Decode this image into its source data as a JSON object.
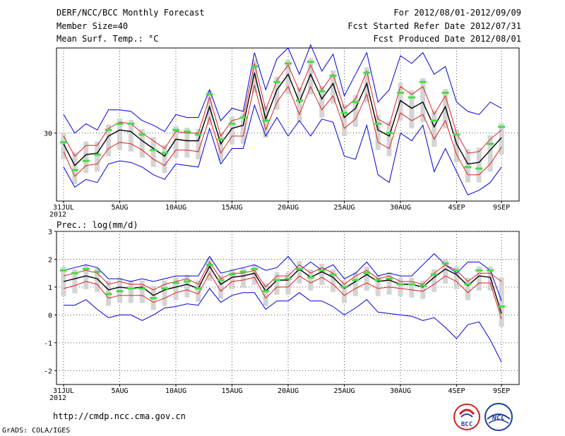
{
  "header": {
    "title": "DERF/NCC/BCC Monthly Forecast",
    "member_size": "Member Size=40",
    "variable": "Mean Surf. Temp.: °C",
    "period": "For 2012/08/01-2012/09/09",
    "started": "Fcst Started Refer Date 2012/07/31",
    "produced": "Fcst Produced Date 2012/08/01"
  },
  "footer": {
    "url": "http://cmdp.ncc.cma.gov.cn",
    "credit": "GrADS: COLA/IGES",
    "logo_bcc": "BCC",
    "logo_ncc": "NCC"
  },
  "colors": {
    "envelope": "#0000dd",
    "spread": "#dd2222",
    "mean": "#000000",
    "box": "#d4d4d4",
    "marker": "#44dd44",
    "grid": "#555555"
  },
  "chart_data": [
    {
      "type": "line",
      "title": "Mean Surf. Temp.: °C",
      "x_tick_labels": [
        "31JUL",
        "5AUG",
        "10AUG",
        "15AUG",
        "20AUG",
        "25AUG",
        "30AUG",
        "4SEP",
        "9SEP"
      ],
      "x_year_label": "2012",
      "y_ticks": [
        30
      ],
      "ylim": [
        25.6,
        35.5
      ],
      "days": 40,
      "series": [
        {
          "name": "ensemble max",
          "values": [
            31.2,
            30.0,
            30.6,
            30.2,
            31.5,
            31.5,
            31.4,
            30.8,
            30.5,
            30.1,
            31.2,
            31.0,
            31.0,
            32.8,
            30.8,
            31.6,
            31.4,
            35.2,
            32.8,
            34.8,
            35.5,
            33.8,
            35.7,
            34.0,
            35.1,
            32.4,
            33.8,
            35.2,
            32.0,
            32.8,
            35.0,
            34.5,
            35.2,
            33.8,
            34.3,
            32.0,
            31.4,
            31.2,
            32.0,
            31.6
          ]
        },
        {
          "name": "spread upper",
          "values": [
            29.8,
            28.5,
            29.2,
            29.2,
            30.3,
            30.7,
            30.6,
            30.0,
            29.5,
            29.0,
            30.1,
            30.0,
            30.0,
            32.3,
            29.8,
            30.8,
            31.0,
            34.5,
            31.5,
            33.4,
            34.4,
            32.7,
            34.4,
            32.8,
            33.8,
            31.6,
            32.2,
            34.0,
            30.9,
            30.5,
            33.0,
            32.5,
            33.0,
            31.2,
            32.4,
            30.0,
            28.7,
            28.8,
            29.6,
            30.2
          ]
        },
        {
          "name": "ensemble mean",
          "values": [
            29.3,
            27.9,
            28.6,
            28.7,
            29.8,
            30.2,
            30.1,
            29.5,
            29.0,
            28.5,
            29.6,
            29.5,
            29.5,
            31.7,
            29.3,
            30.3,
            30.5,
            33.9,
            30.9,
            32.8,
            33.8,
            32.0,
            33.8,
            32.2,
            33.2,
            31.0,
            31.6,
            33.2,
            30.2,
            29.8,
            32.1,
            31.6,
            32.0,
            30.4,
            31.7,
            29.3,
            28.0,
            28.1,
            28.9,
            29.7
          ]
        },
        {
          "name": "spread lower",
          "values": [
            28.8,
            27.2,
            27.9,
            28.0,
            29.0,
            29.4,
            29.3,
            28.9,
            28.3,
            27.9,
            28.9,
            28.9,
            28.8,
            31.0,
            28.7,
            29.8,
            29.8,
            33.1,
            30.2,
            32.0,
            33.0,
            31.2,
            33.0,
            31.5,
            32.4,
            30.3,
            30.9,
            32.5,
            29.4,
            29.0,
            31.3,
            30.8,
            31.2,
            29.6,
            30.8,
            28.6,
            27.3,
            27.3,
            28.0,
            29.1
          ]
        },
        {
          "name": "ensemble min",
          "values": [
            27.8,
            26.5,
            27.0,
            26.8,
            28.0,
            28.2,
            28.1,
            27.8,
            27.3,
            27.0,
            28.0,
            27.9,
            27.8,
            30.3,
            28.0,
            29.0,
            29.0,
            31.8,
            29.8,
            31.0,
            29.8,
            30.8,
            29.8,
            30.9,
            30.7,
            28.5,
            28.3,
            30.5,
            27.3,
            26.8,
            30.0,
            29.5,
            30.5,
            27.5,
            29.0,
            27.5,
            26.0,
            26.3,
            26.8,
            27.8
          ]
        },
        {
          "name": "member markers",
          "values": [
            29.4,
            27.6,
            28.2,
            28.6,
            30.2,
            30.6,
            30.6,
            29.9,
            28.9,
            28.7,
            30.2,
            30.1,
            29.9,
            32.5,
            29.6,
            30.6,
            31.0,
            34.3,
            30.8,
            33.3,
            34.5,
            32.1,
            34.6,
            32.7,
            33.7,
            31.3,
            32.0,
            33.9,
            30.6,
            30.0,
            32.6,
            32.3,
            33.3,
            30.8,
            32.6,
            29.9,
            27.8,
            27.7,
            29.3,
            30.4
          ]
        }
      ]
    },
    {
      "type": "line",
      "title": "Prec.: log(mm/d)",
      "x_tick_labels": [
        "31JUL",
        "5AUG",
        "10AUG",
        "15AUG",
        "20AUG",
        "25AUG",
        "30AUG",
        "4SEP",
        "9SEP"
      ],
      "x_year_label": "2012",
      "y_ticks": [
        3,
        2,
        1,
        0,
        -1,
        -2
      ],
      "ylim": [
        -2.5,
        3.0
      ],
      "days": 40,
      "series": [
        {
          "name": "ensemble max",
          "values": [
            1.6,
            1.7,
            1.8,
            1.7,
            1.3,
            1.3,
            1.2,
            1.3,
            1.2,
            1.3,
            1.4,
            1.4,
            1.4,
            2.1,
            1.5,
            1.6,
            1.7,
            1.8,
            1.6,
            1.7,
            2.1,
            1.6,
            1.9,
            1.6,
            1.8,
            1.3,
            1.5,
            1.9,
            1.4,
            1.5,
            1.4,
            1.4,
            1.8,
            2.2,
            1.8,
            1.5,
            1.9,
            1.9,
            1.6,
            0.5
          ]
        },
        {
          "name": "spread upper",
          "values": [
            1.4,
            1.5,
            1.6,
            1.5,
            1.1,
            1.2,
            1.1,
            1.1,
            0.9,
            1.1,
            1.2,
            1.3,
            1.1,
            1.9,
            1.3,
            1.5,
            1.5,
            1.6,
            1.0,
            1.4,
            1.4,
            1.8,
            1.5,
            1.7,
            1.5,
            1.1,
            1.4,
            1.6,
            1.3,
            1.4,
            1.2,
            1.2,
            1.1,
            1.5,
            1.8,
            1.6,
            1.2,
            1.5,
            1.5,
            1.2
          ]
        },
        {
          "name": "ensemble mean",
          "values": [
            1.2,
            1.3,
            1.4,
            1.3,
            0.9,
            1.0,
            0.95,
            1.0,
            0.7,
            0.9,
            1.0,
            1.1,
            0.95,
            1.75,
            1.1,
            1.35,
            1.4,
            1.5,
            0.85,
            1.25,
            1.25,
            1.65,
            1.35,
            1.55,
            1.35,
            0.95,
            1.2,
            1.45,
            1.2,
            1.25,
            1.1,
            1.1,
            1.0,
            1.35,
            1.65,
            1.45,
            1.05,
            1.4,
            1.35,
            0.05
          ]
        },
        {
          "name": "spread lower",
          "values": [
            0.95,
            1.05,
            1.2,
            1.1,
            0.6,
            0.7,
            0.7,
            0.7,
            0.45,
            0.6,
            0.8,
            0.9,
            0.75,
            1.5,
            0.85,
            1.2,
            1.25,
            1.35,
            0.6,
            1.0,
            1.0,
            1.4,
            1.15,
            1.35,
            1.1,
            0.7,
            0.95,
            1.15,
            0.95,
            1.0,
            0.95,
            0.9,
            0.85,
            1.1,
            1.4,
            1.2,
            0.8,
            1.15,
            1.15,
            -0.15
          ]
        },
        {
          "name": "ensemble min",
          "values": [
            0.35,
            0.35,
            0.55,
            0.2,
            -0.1,
            0.0,
            0.0,
            -0.2,
            0.0,
            0.25,
            0.3,
            0.4,
            0.35,
            0.95,
            0.45,
            0.7,
            0.8,
            0.8,
            0.2,
            0.5,
            0.5,
            0.8,
            0.5,
            0.5,
            0.3,
            0.0,
            0.25,
            0.55,
            0.1,
            0.05,
            0.0,
            -0.05,
            -0.2,
            -0.1,
            -0.45,
            -0.85,
            -0.35,
            -0.25,
            -0.9,
            -1.7
          ]
        },
        {
          "name": "member markers",
          "values": [
            1.6,
            1.5,
            1.65,
            1.55,
            0.75,
            0.85,
            0.95,
            0.95,
            0.6,
            0.95,
            1.15,
            1.2,
            0.95,
            1.8,
            1.25,
            1.45,
            1.55,
            1.65,
            0.85,
            1.25,
            1.3,
            1.65,
            1.35,
            1.6,
            1.45,
            1.0,
            1.25,
            1.5,
            1.25,
            1.3,
            1.1,
            1.1,
            1.05,
            1.45,
            1.85,
            1.6,
            1.1,
            1.6,
            1.6,
            0.3
          ]
        }
      ]
    }
  ]
}
